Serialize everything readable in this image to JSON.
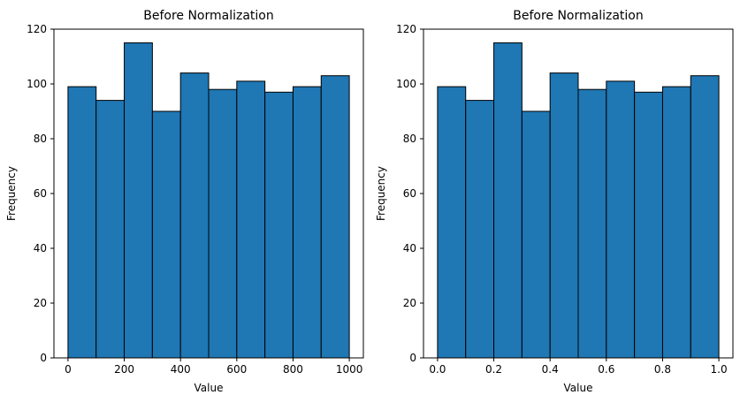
{
  "chart_data": [
    {
      "type": "bar",
      "title": "Before Normalization",
      "xlabel": "Value",
      "ylabel": "Frequency",
      "bin_edges": [
        0,
        100,
        200,
        300,
        400,
        500,
        600,
        700,
        800,
        900,
        1000
      ],
      "values": [
        99,
        94,
        115,
        90,
        104,
        98,
        101,
        97,
        99,
        103
      ],
      "xlim": [
        -50,
        1050
      ],
      "ylim": [
        0,
        120
      ],
      "xticks": [
        0,
        200,
        400,
        600,
        800,
        1000
      ],
      "xtick_labels": [
        "0",
        "200",
        "400",
        "600",
        "800",
        "1000"
      ],
      "yticks": [
        0,
        20,
        40,
        60,
        80,
        100,
        120
      ],
      "ytick_labels": [
        "0",
        "20",
        "40",
        "60",
        "80",
        "100",
        "120"
      ],
      "bar_color": "#1f77b4",
      "edge_color": "#000000",
      "grid": false
    },
    {
      "type": "bar",
      "title": "Before Normalization",
      "xlabel": "Value",
      "ylabel": "Frequency",
      "bin_edges": [
        0.0,
        0.1,
        0.2,
        0.3,
        0.4,
        0.5,
        0.6,
        0.7,
        0.8,
        0.9,
        1.0
      ],
      "values": [
        99,
        94,
        115,
        90,
        104,
        98,
        101,
        97,
        99,
        103
      ],
      "xlim": [
        -0.05,
        1.05
      ],
      "ylim": [
        0,
        120
      ],
      "xticks": [
        0.0,
        0.2,
        0.4,
        0.6,
        0.8,
        1.0
      ],
      "xtick_labels": [
        "0.0",
        "0.2",
        "0.4",
        "0.6",
        "0.8",
        "1.0"
      ],
      "yticks": [
        0,
        20,
        40,
        60,
        80,
        100,
        120
      ],
      "ytick_labels": [
        "0",
        "20",
        "40",
        "60",
        "80",
        "100",
        "120"
      ],
      "bar_color": "#1f77b4",
      "edge_color": "#000000",
      "grid": false
    }
  ]
}
